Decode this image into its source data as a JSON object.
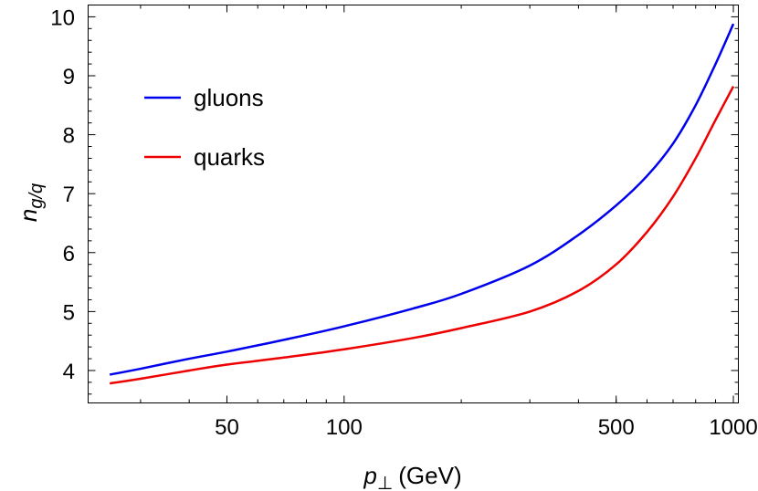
{
  "chart_data": {
    "type": "line",
    "xlabel": "p",
    "xlabel_sub": "⊥",
    "xlabel_unit": "(GeV)",
    "ylabel": "n",
    "ylabel_sub": "g/q",
    "x_scale": "log",
    "xlim": [
      22,
      1030
    ],
    "ylim": [
      3.45,
      10.2
    ],
    "x_ticks": [
      50,
      100,
      500,
      1000
    ],
    "x_tick_labels": [
      "50",
      "100",
      "500",
      "1000"
    ],
    "y_ticks": [
      4,
      5,
      6,
      7,
      8,
      9,
      10
    ],
    "y_tick_labels": [
      "4",
      "5",
      "6",
      "7",
      "8",
      "9",
      "10"
    ],
    "grid": false,
    "legend_position": "top-left",
    "series": [
      {
        "name": "gluons",
        "color": "#0000ee",
        "x": [
          25,
          30,
          40,
          50,
          70,
          100,
          150,
          200,
          300,
          400,
          500,
          600,
          700,
          800,
          900,
          1000
        ],
        "y": [
          3.93,
          4.03,
          4.2,
          4.32,
          4.52,
          4.75,
          5.05,
          5.3,
          5.78,
          6.3,
          6.8,
          7.3,
          7.85,
          8.5,
          9.2,
          9.88
        ]
      },
      {
        "name": "quarks",
        "color": "#ee0000",
        "x": [
          25,
          30,
          40,
          50,
          70,
          100,
          150,
          200,
          300,
          400,
          500,
          600,
          700,
          800,
          900,
          1000
        ],
        "y": [
          3.78,
          3.86,
          4.0,
          4.1,
          4.22,
          4.36,
          4.55,
          4.72,
          5.0,
          5.35,
          5.8,
          6.35,
          6.95,
          7.6,
          8.25,
          8.82
        ]
      }
    ]
  }
}
